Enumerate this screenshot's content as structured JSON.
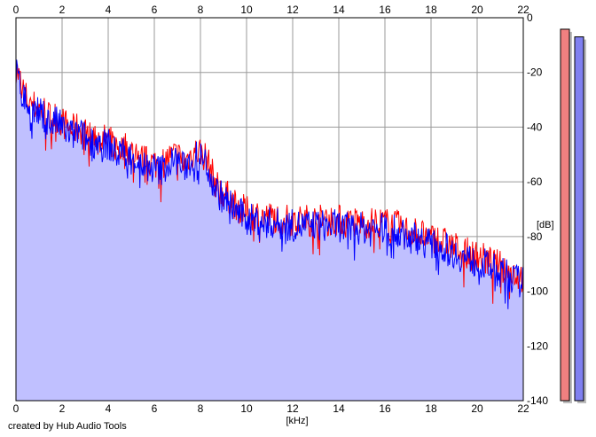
{
  "chart_data": {
    "type": "area",
    "xlabel": "[kHz]",
    "ylabel": "[dB]",
    "xlim": [
      0,
      22
    ],
    "ylim": [
      -140,
      0
    ],
    "x_ticks": [
      "0",
      "2",
      "4",
      "6",
      "8",
      "10",
      "12",
      "14",
      "16",
      "18",
      "20",
      "22"
    ],
    "y_ticks": [
      "0",
      "-20",
      "-40",
      "-60",
      "-80",
      "-100",
      "-120",
      "-140"
    ],
    "grid": true,
    "x": [
      0,
      0.25,
      0.5,
      0.75,
      1,
      1.25,
      1.5,
      1.75,
      2,
      2.25,
      2.5,
      2.75,
      3,
      3.25,
      3.5,
      3.75,
      4,
      4.25,
      4.5,
      4.75,
      5,
      5.25,
      5.5,
      5.75,
      6,
      6.25,
      6.5,
      6.75,
      7,
      7.25,
      7.5,
      7.75,
      8,
      8.25,
      8.5,
      8.75,
      9,
      9.25,
      9.5,
      9.75,
      10,
      10.25,
      10.5,
      10.75,
      11,
      11.25,
      11.5,
      11.75,
      12,
      12.25,
      12.5,
      12.75,
      13,
      13.25,
      13.5,
      13.75,
      14,
      14.25,
      14.5,
      14.75,
      15,
      15.25,
      15.5,
      15.75,
      16,
      16.25,
      16.5,
      16.75,
      17,
      17.25,
      17.5,
      17.75,
      18,
      18.25,
      18.5,
      18.75,
      19,
      19.25,
      19.5,
      19.75,
      20,
      20.25,
      20.5,
      20.75,
      21,
      21.25,
      21.5,
      21.75,
      22
    ],
    "series": [
      {
        "color": "#ff0000",
        "values": [
          -18,
          -25,
          -30,
          -32,
          -33,
          -34,
          -37,
          -36,
          -38,
          -40,
          -41,
          -40,
          -42,
          -44,
          -43,
          -45,
          -44,
          -47,
          -48,
          -47,
          -49,
          -50,
          -52,
          -53,
          -53,
          -54,
          -52,
          -51,
          -50,
          -53,
          -51,
          -49,
          -49,
          -51,
          -57,
          -62,
          -64,
          -66,
          -68,
          -70,
          -71,
          -72,
          -72,
          -73,
          -73,
          -73,
          -74,
          -74,
          -74,
          -74,
          -74,
          -74,
          -74,
          -74,
          -74,
          -74,
          -74,
          -75,
          -75,
          -75,
          -75,
          -75,
          -75,
          -75,
          -75,
          -76,
          -76,
          -77,
          -78,
          -78,
          -79,
          -80,
          -81,
          -81,
          -82,
          -83,
          -84,
          -85,
          -86,
          -87,
          -87,
          -88,
          -89,
          -90,
          -91,
          -92,
          -93,
          -94,
          -95
        ]
      },
      {
        "color": "#0000ff",
        "values": [
          -20,
          -27,
          -32,
          -34,
          -35,
          -36,
          -39,
          -38,
          -40,
          -42,
          -43,
          -42,
          -44,
          -46,
          -45,
          -47,
          -46,
          -49,
          -50,
          -49,
          -51,
          -52,
          -54,
          -55,
          -55,
          -56,
          -54,
          -53,
          -52,
          -55,
          -53,
          -51,
          -51,
          -53,
          -59,
          -64,
          -66,
          -68,
          -70,
          -72,
          -73,
          -74,
          -74,
          -75,
          -75,
          -75,
          -76,
          -76,
          -76,
          -76,
          -76,
          -76,
          -76,
          -76,
          -76,
          -76,
          -76,
          -77,
          -77,
          -77,
          -77,
          -77,
          -77,
          -77,
          -77,
          -78,
          -78,
          -79,
          -80,
          -80,
          -81,
          -82,
          -83,
          -83,
          -84,
          -85,
          -86,
          -87,
          -88,
          -89,
          -89,
          -90,
          -91,
          -92,
          -93,
          -94,
          -95,
          -96,
          -97
        ]
      }
    ],
    "level_meters": [
      {
        "color": "#f08080",
        "level": 0.97
      },
      {
        "color": "#8080f0",
        "level": 0.95
      }
    ]
  },
  "credit": "created by Hub Audio Tools",
  "colors": {
    "fill": "#c0c0ff",
    "grid": "#9a9a9a",
    "meter_shadow": "#bdbdbd"
  }
}
